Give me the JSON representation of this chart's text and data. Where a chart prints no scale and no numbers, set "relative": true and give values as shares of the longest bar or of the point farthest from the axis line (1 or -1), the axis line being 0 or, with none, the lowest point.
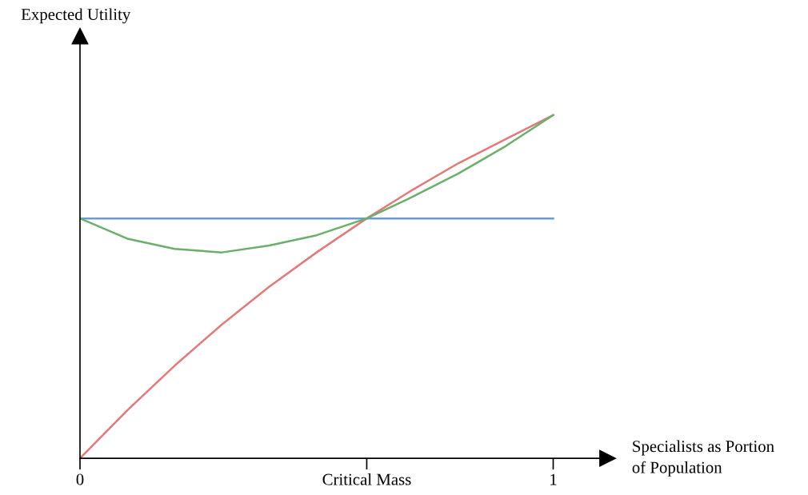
{
  "chart_data": {
    "type": "line",
    "relative": true,
    "xlabel": "Specialists as Portion\nof Population",
    "annotations": [
      "Expected Utility"
    ],
    "x": [
      0,
      0.1,
      0.2,
      0.3,
      0.4,
      0.5,
      0.606,
      0.7,
      0.8,
      0.9,
      1
    ],
    "xlim": [
      0,
      1.115
    ],
    "xticks": [
      0,
      {
        "value": 0.606,
        "label": "Critical Mass"
      },
      1
    ],
    "grid": false,
    "legend": false,
    "marker": "none",
    "line_style": "solid",
    "series": [
      {
        "color": "#6d9bd1",
        "values": [
          0.699,
          0.699,
          0.699,
          0.699,
          0.699,
          0.699,
          0.699,
          0.699,
          0.699,
          0.699,
          0.699
        ]
      },
      {
        "color": "#e07b7b",
        "values": [
          0,
          0.14,
          0.27,
          0.39,
          0.5,
          0.6,
          0.699,
          0.78,
          0.86,
          0.93,
          1
        ]
      },
      {
        "color": "#6aaf6a",
        "values": [
          0.699,
          0.64,
          0.61,
          0.6,
          0.62,
          0.65,
          0.699,
          0.76,
          0.83,
          0.91,
          1
        ]
      }
    ]
  }
}
